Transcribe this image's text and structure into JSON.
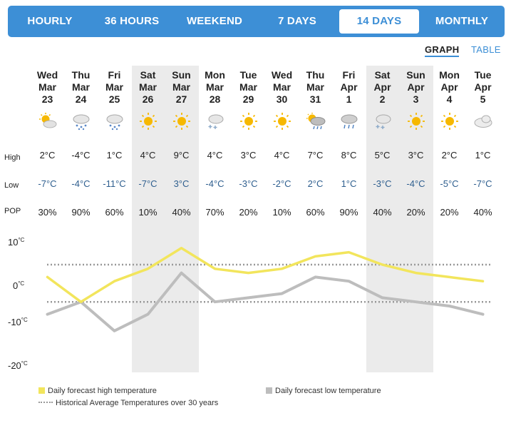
{
  "tabs": [
    {
      "label": "HOURLY",
      "active": false
    },
    {
      "label": "36 HOURS",
      "active": false
    },
    {
      "label": "WEEKEND",
      "active": false
    },
    {
      "label": "7 DAYS",
      "active": false
    },
    {
      "label": "14 DAYS",
      "active": true
    },
    {
      "label": "MONTHLY",
      "active": false
    }
  ],
  "view_toggle": {
    "graph": "GRAPH",
    "table": "TABLE",
    "selected": "GRAPH"
  },
  "row_labels": {
    "high": "High",
    "low": "Low",
    "pop": "POP"
  },
  "days": [
    {
      "dow": "Wed",
      "month": "Mar",
      "date": "23",
      "icon": "sun-cloud-icon",
      "high": "2°C",
      "low": "-7°C",
      "pop": "30%",
      "weekend": false
    },
    {
      "dow": "Thu",
      "month": "Mar",
      "date": "24",
      "icon": "snow-cloud-icon",
      "high": "-4°C",
      "low": "-4°C",
      "pop": "90%",
      "weekend": false
    },
    {
      "dow": "Fri",
      "month": "Mar",
      "date": "25",
      "icon": "snow-cloud-icon",
      "high": "1°C",
      "low": "-11°C",
      "pop": "60%",
      "weekend": false
    },
    {
      "dow": "Sat",
      "month": "Mar",
      "date": "26",
      "icon": "sun-icon",
      "high": "4°C",
      "low": "-7°C",
      "pop": "10%",
      "weekend": true
    },
    {
      "dow": "Sun",
      "month": "Mar",
      "date": "27",
      "icon": "sun-icon",
      "high": "9°C",
      "low": "3°C",
      "pop": "40%",
      "weekend": true
    },
    {
      "dow": "Mon",
      "month": "Mar",
      "date": "28",
      "icon": "flurries-cloud-icon",
      "high": "4°C",
      "low": "-4°C",
      "pop": "70%",
      "weekend": false
    },
    {
      "dow": "Tue",
      "month": "Mar",
      "date": "29",
      "icon": "sun-icon",
      "high": "3°C",
      "low": "-3°C",
      "pop": "20%",
      "weekend": false
    },
    {
      "dow": "Wed",
      "month": "Mar",
      "date": "30",
      "icon": "sun-icon",
      "high": "4°C",
      "low": "-2°C",
      "pop": "10%",
      "weekend": false
    },
    {
      "dow": "Thu",
      "month": "Mar",
      "date": "31",
      "icon": "sun-rain-cloud-icon",
      "high": "7°C",
      "low": "2°C",
      "pop": "60%",
      "weekend": false
    },
    {
      "dow": "Fri",
      "month": "Apr",
      "date": "1",
      "icon": "rain-cloud-icon",
      "high": "8°C",
      "low": "1°C",
      "pop": "90%",
      "weekend": false
    },
    {
      "dow": "Sat",
      "month": "Apr",
      "date": "2",
      "icon": "flurries-cloud-icon",
      "high": "5°C",
      "low": "-3°C",
      "pop": "40%",
      "weekend": true
    },
    {
      "dow": "Sun",
      "month": "Apr",
      "date": "3",
      "icon": "sun-icon",
      "high": "3°C",
      "low": "-4°C",
      "pop": "20%",
      "weekend": true
    },
    {
      "dow": "Mon",
      "month": "Apr",
      "date": "4",
      "icon": "sun-icon",
      "high": "2°C",
      "low": "-5°C",
      "pop": "20%",
      "weekend": false
    },
    {
      "dow": "Tue",
      "month": "Apr",
      "date": "5",
      "icon": "cloud-icon",
      "high": "1°C",
      "low": "-7°C",
      "pop": "40%",
      "weekend": false
    }
  ],
  "y_axis": [
    {
      "value": "10",
      "unit": "°C"
    },
    {
      "value": "0",
      "unit": "°C"
    },
    {
      "value": "-10",
      "unit": "°C"
    },
    {
      "value": "-20",
      "unit": "°C"
    }
  ],
  "legend": {
    "high": "Daily forecast high temperature",
    "low": "Daily forecast low temperature",
    "avg": "Historical Average Temperatures over 30 years"
  },
  "colors": {
    "accent": "#3d8fd6",
    "high_line": "#f2e55c",
    "low_line": "#bdbdbd",
    "avg_line": "#999999",
    "weekend_shade": "#ebebeb"
  },
  "chart_data": {
    "type": "line",
    "x": [
      "Mar 23",
      "Mar 24",
      "Mar 25",
      "Mar 26",
      "Mar 27",
      "Mar 28",
      "Mar 29",
      "Mar 30",
      "Mar 31",
      "Apr 1",
      "Apr 2",
      "Apr 3",
      "Apr 4",
      "Apr 5"
    ],
    "series": [
      {
        "name": "Daily forecast high temperature",
        "values": [
          2,
          -4,
          1,
          4,
          9,
          4,
          3,
          4,
          7,
          8,
          5,
          3,
          2,
          1
        ]
      },
      {
        "name": "Daily forecast low temperature",
        "values": [
          -7,
          -4,
          -11,
          -7,
          3,
          -4,
          -3,
          -2,
          2,
          1,
          -3,
          -4,
          -5,
          -7
        ]
      }
    ],
    "historical_average": {
      "name": "Historical Average Temperatures over 30 years",
      "high": 5,
      "low": -4
    },
    "ylim": [
      -20,
      10
    ],
    "y_ticks": [
      10,
      0,
      -10,
      -20
    ],
    "grid": false,
    "legend_position": "bottom"
  }
}
